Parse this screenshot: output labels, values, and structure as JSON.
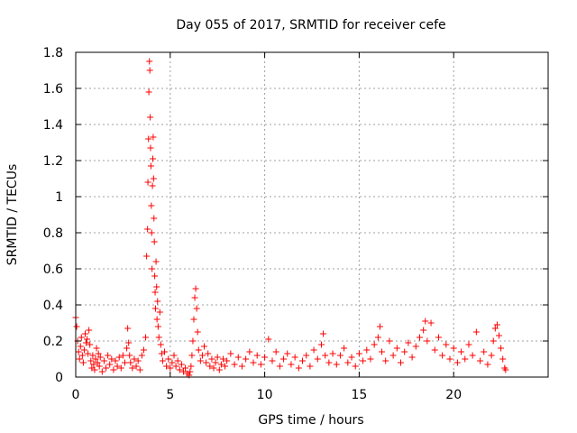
{
  "chart_data": {
    "type": "scatter",
    "title": "Day 055 of 2017, SRMTID for receiver cefe",
    "xlabel": "GPS time / hours",
    "ylabel": "SRMTID / TECUs",
    "xlim": [
      0,
      25
    ],
    "ylim": [
      0,
      1.8
    ],
    "xticks": [
      0,
      5,
      10,
      15,
      20
    ],
    "yticks": [
      0,
      0.2,
      0.4,
      0.6,
      0.8,
      1,
      1.2,
      1.4,
      1.6,
      1.8
    ],
    "xtick_labels": [
      "0",
      "5",
      "10",
      "15",
      "20"
    ],
    "ytick_labels": [
      "0",
      "0.2",
      "0.4",
      "0.6",
      "0.8",
      "1",
      "1.2",
      "1.4",
      "1.6",
      "1.8"
    ],
    "grid": true,
    "marker": "+",
    "color": "#ff0000",
    "series": [
      {
        "name": "SRMTID",
        "points": [
          [
            0.0,
            0.33
          ],
          [
            0.05,
            0.28
          ],
          [
            0.1,
            0.2
          ],
          [
            0.15,
            0.14
          ],
          [
            0.2,
            0.1
          ],
          [
            0.25,
            0.17
          ],
          [
            0.3,
            0.22
          ],
          [
            0.35,
            0.12
          ],
          [
            0.4,
            0.08
          ],
          [
            0.45,
            0.15
          ],
          [
            0.5,
            0.24
          ],
          [
            0.55,
            0.19
          ],
          [
            0.6,
            0.21
          ],
          [
            0.65,
            0.13
          ],
          [
            0.7,
            0.26
          ],
          [
            0.75,
            0.18
          ],
          [
            0.8,
            0.09
          ],
          [
            0.85,
            0.05
          ],
          [
            0.9,
            0.12
          ],
          [
            0.95,
            0.07
          ],
          [
            1.0,
            0.04
          ],
          [
            1.05,
            0.1
          ],
          [
            1.1,
            0.16
          ],
          [
            1.15,
            0.08
          ],
          [
            1.2,
            0.13
          ],
          [
            1.25,
            0.06
          ],
          [
            1.3,
            0.11
          ],
          [
            1.4,
            0.03
          ],
          [
            1.5,
            0.09
          ],
          [
            1.6,
            0.05
          ],
          [
            1.7,
            0.12
          ],
          [
            1.8,
            0.07
          ],
          [
            1.9,
            0.1
          ],
          [
            2.0,
            0.04
          ],
          [
            2.1,
            0.09
          ],
          [
            2.2,
            0.06
          ],
          [
            2.3,
            0.11
          ],
          [
            2.4,
            0.05
          ],
          [
            2.5,
            0.12
          ],
          [
            2.6,
            0.08
          ],
          [
            2.7,
            0.16
          ],
          [
            2.75,
            0.27
          ],
          [
            2.8,
            0.19
          ],
          [
            2.85,
            0.12
          ],
          [
            2.9,
            0.08
          ],
          [
            3.0,
            0.05
          ],
          [
            3.1,
            0.1
          ],
          [
            3.2,
            0.06
          ],
          [
            3.3,
            0.09
          ],
          [
            3.4,
            0.04
          ],
          [
            3.5,
            0.12
          ],
          [
            3.6,
            0.15
          ],
          [
            3.7,
            0.22
          ],
          [
            3.75,
            0.67
          ],
          [
            3.8,
            0.82
          ],
          [
            3.82,
            1.08
          ],
          [
            3.85,
            1.32
          ],
          [
            3.87,
            1.58
          ],
          [
            3.9,
            1.75
          ],
          [
            3.92,
            1.7
          ],
          [
            3.94,
            1.44
          ],
          [
            3.96,
            1.27
          ],
          [
            3.98,
            1.17
          ],
          [
            4.0,
            0.95
          ],
          [
            4.02,
            0.8
          ],
          [
            4.04,
            0.6
          ],
          [
            4.06,
            1.06
          ],
          [
            4.08,
            1.21
          ],
          [
            4.1,
            1.33
          ],
          [
            4.12,
            1.1
          ],
          [
            4.14,
            0.88
          ],
          [
            4.16,
            0.75
          ],
          [
            4.18,
            0.56
          ],
          [
            4.2,
            0.47
          ],
          [
            4.22,
            0.38
          ],
          [
            4.25,
            0.64
          ],
          [
            4.28,
            0.5
          ],
          [
            4.3,
            0.32
          ],
          [
            4.33,
            0.42
          ],
          [
            4.36,
            0.28
          ],
          [
            4.4,
            0.22
          ],
          [
            4.45,
            0.36
          ],
          [
            4.5,
            0.18
          ],
          [
            4.55,
            0.13
          ],
          [
            4.6,
            0.09
          ],
          [
            4.7,
            0.14
          ],
          [
            4.8,
            0.06
          ],
          [
            4.9,
            0.1
          ],
          [
            5.0,
            0.05
          ],
          [
            5.1,
            0.08
          ],
          [
            5.2,
            0.12
          ],
          [
            5.3,
            0.06
          ],
          [
            5.4,
            0.09
          ],
          [
            5.5,
            0.04
          ],
          [
            5.6,
            0.07
          ],
          [
            5.7,
            0.03
          ],
          [
            5.8,
            0.05
          ],
          [
            5.9,
            0.02
          ],
          [
            6.0,
            0.01
          ],
          [
            6.05,
            0.03
          ],
          [
            6.1,
            0.06
          ],
          [
            6.15,
            0.12
          ],
          [
            6.2,
            0.2
          ],
          [
            6.25,
            0.32
          ],
          [
            6.3,
            0.44
          ],
          [
            6.35,
            0.49
          ],
          [
            6.4,
            0.38
          ],
          [
            6.45,
            0.25
          ],
          [
            6.5,
            0.15
          ],
          [
            6.6,
            0.09
          ],
          [
            6.7,
            0.12
          ],
          [
            6.8,
            0.17
          ],
          [
            6.9,
            0.08
          ],
          [
            7.0,
            0.13
          ],
          [
            7.1,
            0.06
          ],
          [
            7.2,
            0.1
          ],
          [
            7.3,
            0.05
          ],
          [
            7.4,
            0.08
          ],
          [
            7.5,
            0.11
          ],
          [
            7.6,
            0.04
          ],
          [
            7.7,
            0.07
          ],
          [
            7.8,
            0.1
          ],
          [
            7.9,
            0.06
          ],
          [
            8.0,
            0.09
          ],
          [
            8.2,
            0.13
          ],
          [
            8.4,
            0.07
          ],
          [
            8.6,
            0.11
          ],
          [
            8.8,
            0.06
          ],
          [
            9.0,
            0.1
          ],
          [
            9.2,
            0.14
          ],
          [
            9.4,
            0.08
          ],
          [
            9.6,
            0.12
          ],
          [
            9.8,
            0.07
          ],
          [
            10.0,
            0.11
          ],
          [
            10.2,
            0.21
          ],
          [
            10.4,
            0.09
          ],
          [
            10.6,
            0.14
          ],
          [
            10.8,
            0.06
          ],
          [
            11.0,
            0.1
          ],
          [
            11.2,
            0.13
          ],
          [
            11.4,
            0.07
          ],
          [
            11.6,
            0.11
          ],
          [
            11.8,
            0.05
          ],
          [
            12.0,
            0.09
          ],
          [
            12.2,
            0.12
          ],
          [
            12.4,
            0.06
          ],
          [
            12.6,
            0.15
          ],
          [
            12.8,
            0.1
          ],
          [
            13.0,
            0.18
          ],
          [
            13.1,
            0.24
          ],
          [
            13.2,
            0.12
          ],
          [
            13.4,
            0.08
          ],
          [
            13.6,
            0.13
          ],
          [
            13.8,
            0.07
          ],
          [
            14.0,
            0.12
          ],
          [
            14.2,
            0.16
          ],
          [
            14.4,
            0.08
          ],
          [
            14.6,
            0.11
          ],
          [
            14.8,
            0.06
          ],
          [
            15.0,
            0.13
          ],
          [
            15.2,
            0.09
          ],
          [
            15.4,
            0.15
          ],
          [
            15.6,
            0.1
          ],
          [
            15.8,
            0.18
          ],
          [
            16.0,
            0.22
          ],
          [
            16.1,
            0.28
          ],
          [
            16.2,
            0.14
          ],
          [
            16.4,
            0.09
          ],
          [
            16.6,
            0.2
          ],
          [
            16.8,
            0.12
          ],
          [
            17.0,
            0.16
          ],
          [
            17.2,
            0.08
          ],
          [
            17.4,
            0.14
          ],
          [
            17.6,
            0.19
          ],
          [
            17.8,
            0.11
          ],
          [
            18.0,
            0.17
          ],
          [
            18.2,
            0.22
          ],
          [
            18.4,
            0.26
          ],
          [
            18.5,
            0.31
          ],
          [
            18.6,
            0.2
          ],
          [
            18.8,
            0.3
          ],
          [
            19.0,
            0.15
          ],
          [
            19.2,
            0.22
          ],
          [
            19.4,
            0.12
          ],
          [
            19.6,
            0.18
          ],
          [
            19.8,
            0.1
          ],
          [
            20.0,
            0.16
          ],
          [
            20.2,
            0.08
          ],
          [
            20.4,
            0.14
          ],
          [
            20.6,
            0.1
          ],
          [
            20.8,
            0.18
          ],
          [
            21.0,
            0.12
          ],
          [
            21.2,
            0.25
          ],
          [
            21.4,
            0.09
          ],
          [
            21.6,
            0.14
          ],
          [
            21.8,
            0.07
          ],
          [
            22.0,
            0.12
          ],
          [
            22.1,
            0.2
          ],
          [
            22.2,
            0.27
          ],
          [
            22.3,
            0.29
          ],
          [
            22.4,
            0.23
          ],
          [
            22.5,
            0.16
          ],
          [
            22.6,
            0.1
          ],
          [
            22.7,
            0.05
          ],
          [
            22.75,
            0.04
          ]
        ]
      }
    ]
  }
}
